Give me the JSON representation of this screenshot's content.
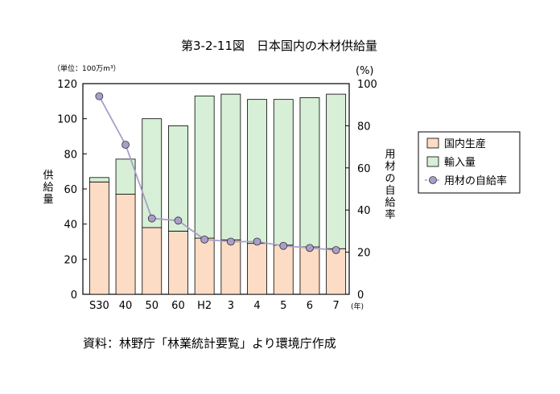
{
  "chart_data": {
    "type": "bar",
    "title": "第3-2-11図　日本国内の木材供給量",
    "unit_left": "（単位：100万m³）",
    "unit_right": "(%)",
    "unit_x": "(年)",
    "ylabel": [
      "供",
      "給",
      "量"
    ],
    "y2label": [
      "用",
      "材",
      "の",
      "自",
      "給",
      "率"
    ],
    "categories": [
      "S30",
      "40",
      "50",
      "60",
      "H2",
      "3",
      "4",
      "5",
      "6",
      "7"
    ],
    "ylim": [
      0,
      120
    ],
    "y_ticks": [
      "0",
      "20",
      "40",
      "60",
      "80",
      "100",
      "120"
    ],
    "y2lim": [
      0,
      100
    ],
    "y2_ticks": [
      "0",
      "20",
      "40",
      "60",
      "80",
      "100"
    ],
    "series": [
      {
        "name": "国内生産",
        "kind": "bar-stack",
        "color": "#fcdcc4",
        "values": [
          64,
          57,
          38,
          36,
          32,
          31,
          29,
          28,
          27,
          26
        ]
      },
      {
        "name": "輸入量",
        "kind": "bar-stack",
        "color": "#d6efd6",
        "values": [
          2.5,
          20,
          62,
          60,
          81,
          83,
          82,
          83,
          85,
          88
        ]
      },
      {
        "name": "用材の自給率",
        "kind": "line",
        "axis": "right",
        "color": "#a99ec9",
        "values": [
          94,
          71,
          36,
          35,
          26,
          25,
          25,
          23,
          22,
          21
        ]
      }
    ],
    "source": "資料：林野庁「林業統計要覧」より環境庁作成",
    "legend_position": "right"
  }
}
